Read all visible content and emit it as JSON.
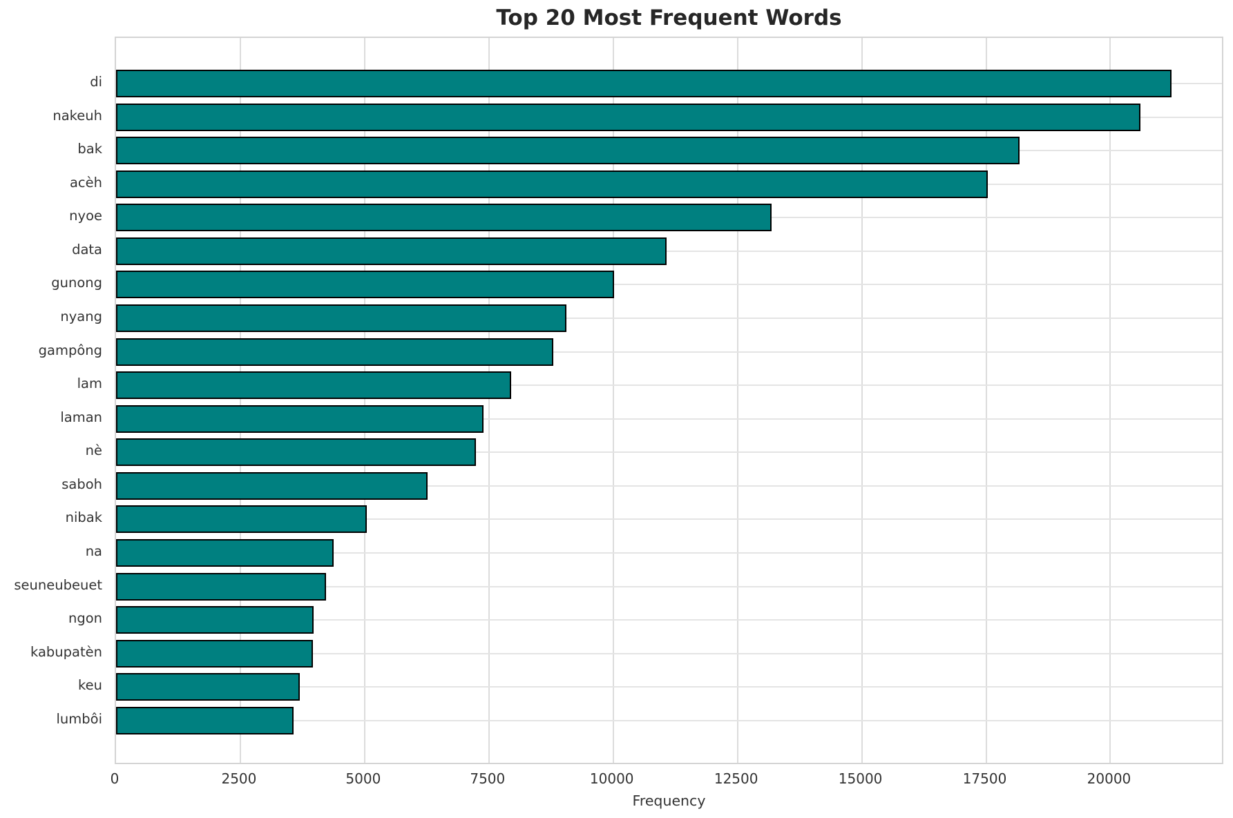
{
  "chart_data": {
    "type": "bar",
    "orientation": "horizontal",
    "title": "Top 20 Most Frequent Words",
    "xlabel": "Frequency",
    "ylabel": "",
    "categories": [
      "di",
      "nakeuh",
      "bak",
      "acèh",
      "nyoe",
      "data",
      "gunong",
      "nyang",
      "gampông",
      "lam",
      "laman",
      "nè",
      "saboh",
      "nibak",
      "na",
      "seuneubeuet",
      "ngon",
      "kabupatèn",
      "keu",
      "lumbôi"
    ],
    "values": [
      21230,
      20610,
      18180,
      17530,
      13190,
      11080,
      10020,
      9060,
      8790,
      7950,
      7390,
      7240,
      6260,
      5050,
      4380,
      4230,
      3970,
      3960,
      3690,
      3570
    ],
    "xlim": [
      0,
      22300
    ],
    "xticks": [
      0,
      2500,
      5000,
      7500,
      10000,
      12500,
      15000,
      17500,
      20000
    ],
    "grid": true,
    "legend": "none",
    "colors": {
      "bar_fill": "#008080",
      "bar_edge": "#000000",
      "grid_line": "#dcdcdc",
      "plot_border": "#d4d4d4",
      "tick_label": "#333333",
      "title": "#262626",
      "background": "#ffffff"
    }
  }
}
